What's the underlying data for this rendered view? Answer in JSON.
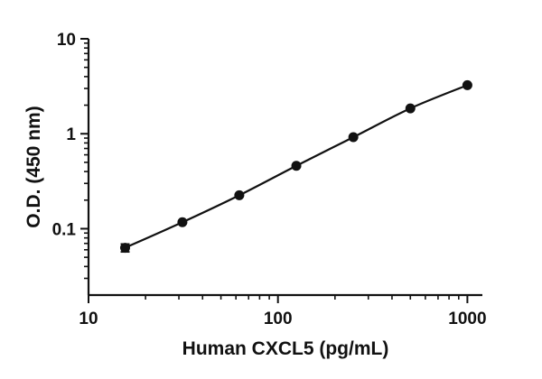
{
  "chart_data": {
    "type": "scatter",
    "xlabel": "Human CXCL5 (pg/mL)",
    "ylabel": "O.D. (450 nm)",
    "xscale": "log",
    "yscale": "log",
    "xlim": [
      10,
      1200
    ],
    "ylim": [
      0.02,
      10
    ],
    "x_ticks": [
      10,
      100,
      1000
    ],
    "x_tick_labels": [
      "10",
      "100",
      "1000"
    ],
    "y_ticks": [
      0.1,
      1,
      10
    ],
    "y_tick_labels": [
      "0.1",
      "1",
      "10"
    ],
    "grid": false,
    "legend": "none",
    "series": [
      {
        "x": [
          15.6,
          31.3,
          62.5,
          125,
          250,
          500,
          1000
        ],
        "y": [
          0.063,
          0.117,
          0.225,
          0.46,
          0.92,
          1.85,
          3.25
        ],
        "error": [
          0.006,
          0.004,
          0.007,
          0.015,
          0.03,
          0.05,
          0.08
        ],
        "fit": "4PL curve",
        "color": "#111111"
      }
    ]
  }
}
